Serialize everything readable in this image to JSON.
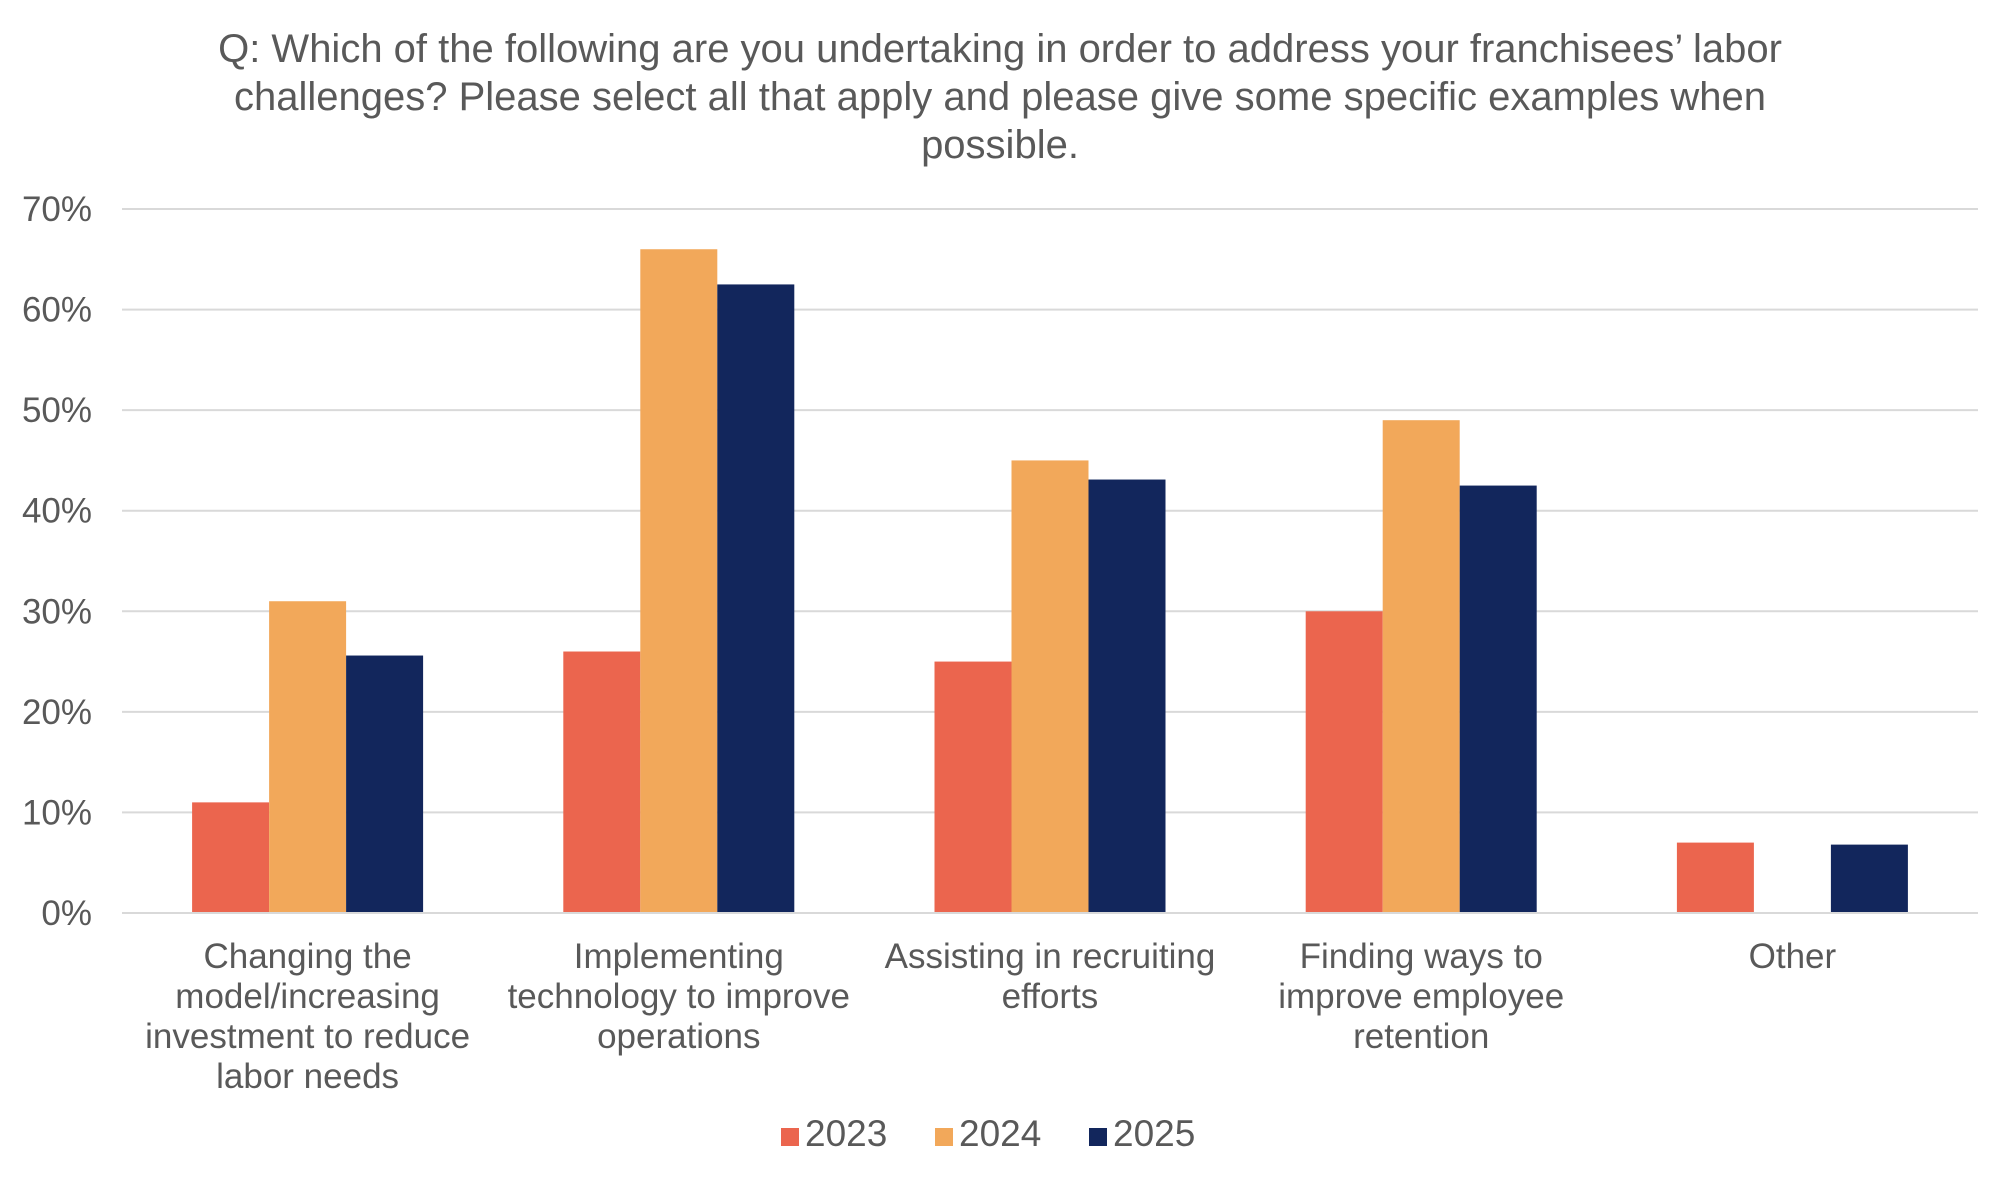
{
  "chart_data": {
    "type": "bar",
    "title_lines": [
      "Q: Which of the following are you undertaking in order to address your franchisees’ labor",
      "challenges? Please select all that apply and please give some specific examples when",
      "possible."
    ],
    "categories": [
      [
        "Changing the",
        "model/increasing",
        "investment to reduce",
        "labor needs"
      ],
      [
        "Implementing",
        "technology to improve",
        "operations"
      ],
      [
        "Assisting in recruiting",
        "efforts"
      ],
      [
        "Finding ways to",
        "improve employee",
        "retention"
      ],
      [
        "Other"
      ]
    ],
    "series": [
      {
        "name": "2023",
        "color": "#EB654E",
        "values": [
          11,
          26,
          25,
          30,
          7
        ]
      },
      {
        "name": "2024",
        "color": "#F2A85A",
        "values": [
          31,
          66,
          45,
          49,
          0
        ]
      },
      {
        "name": "2025",
        "color": "#12265C",
        "values": [
          25.6,
          62.5,
          43.1,
          42.5,
          6.8
        ]
      }
    ],
    "y_ticks": [
      "0%",
      "10%",
      "20%",
      "30%",
      "40%",
      "50%",
      "60%",
      "70%"
    ],
    "ylim": [
      0,
      70
    ],
    "grid": true,
    "legend_position": "bottom-center",
    "gridline_color": "#D9D9D9"
  }
}
